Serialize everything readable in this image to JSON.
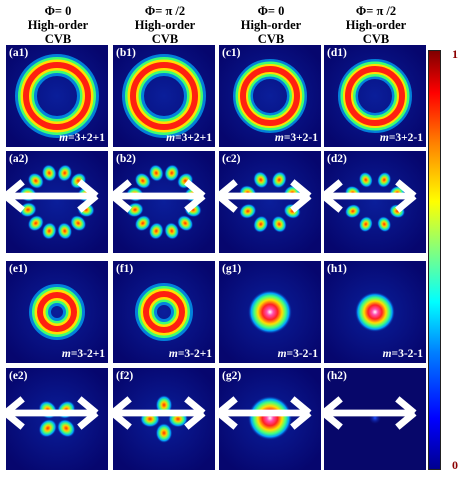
{
  "columns": [
    {
      "phi": "Φ= 0",
      "line2": "High-order",
      "line3": "CVB"
    },
    {
      "phi": "Φ= π /2",
      "line2": "High-order",
      "line3": "CVB"
    },
    {
      "phi": "Φ= 0",
      "line2": "High-order",
      "line3": "CVB"
    },
    {
      "phi": "Φ= π /2",
      "line2": "High-order",
      "line3": "CVB"
    }
  ],
  "panels": {
    "a1": {
      "label": "(a1)",
      "m_prefix": "m",
      "m_value": "=3+2+1"
    },
    "b1": {
      "label": "(b1)",
      "m_prefix": "m",
      "m_value": "=3+2+1"
    },
    "c1": {
      "label": "(c1)",
      "m_prefix": "m",
      "m_value": "=3+2-1"
    },
    "d1": {
      "label": "(d1)",
      "m_prefix": "m",
      "m_value": "=3+2-1"
    },
    "a2": {
      "label": "(a2)"
    },
    "b2": {
      "label": "(b2)"
    },
    "c2": {
      "label": "(c2)"
    },
    "d2": {
      "label": "(d2)"
    },
    "e1": {
      "label": "(e1)",
      "m_prefix": "m",
      "m_value": "=3-2+1"
    },
    "f1": {
      "label": "(f1)",
      "m_prefix": "m",
      "m_value": "=3-2+1"
    },
    "g1": {
      "label": "(g1)",
      "m_prefix": "m",
      "m_value": "=3-2-1"
    },
    "h1": {
      "label": "(h1)",
      "m_prefix": "m",
      "m_value": "=3-2-1"
    },
    "e2": {
      "label": "(e2)"
    },
    "f2": {
      "label": "(f2)"
    },
    "g2": {
      "label": "(g2)"
    },
    "h2": {
      "label": "(h2)"
    }
  },
  "colorbar": {
    "max_label": "1",
    "min_label": "0",
    "colormap": "jet"
  }
}
